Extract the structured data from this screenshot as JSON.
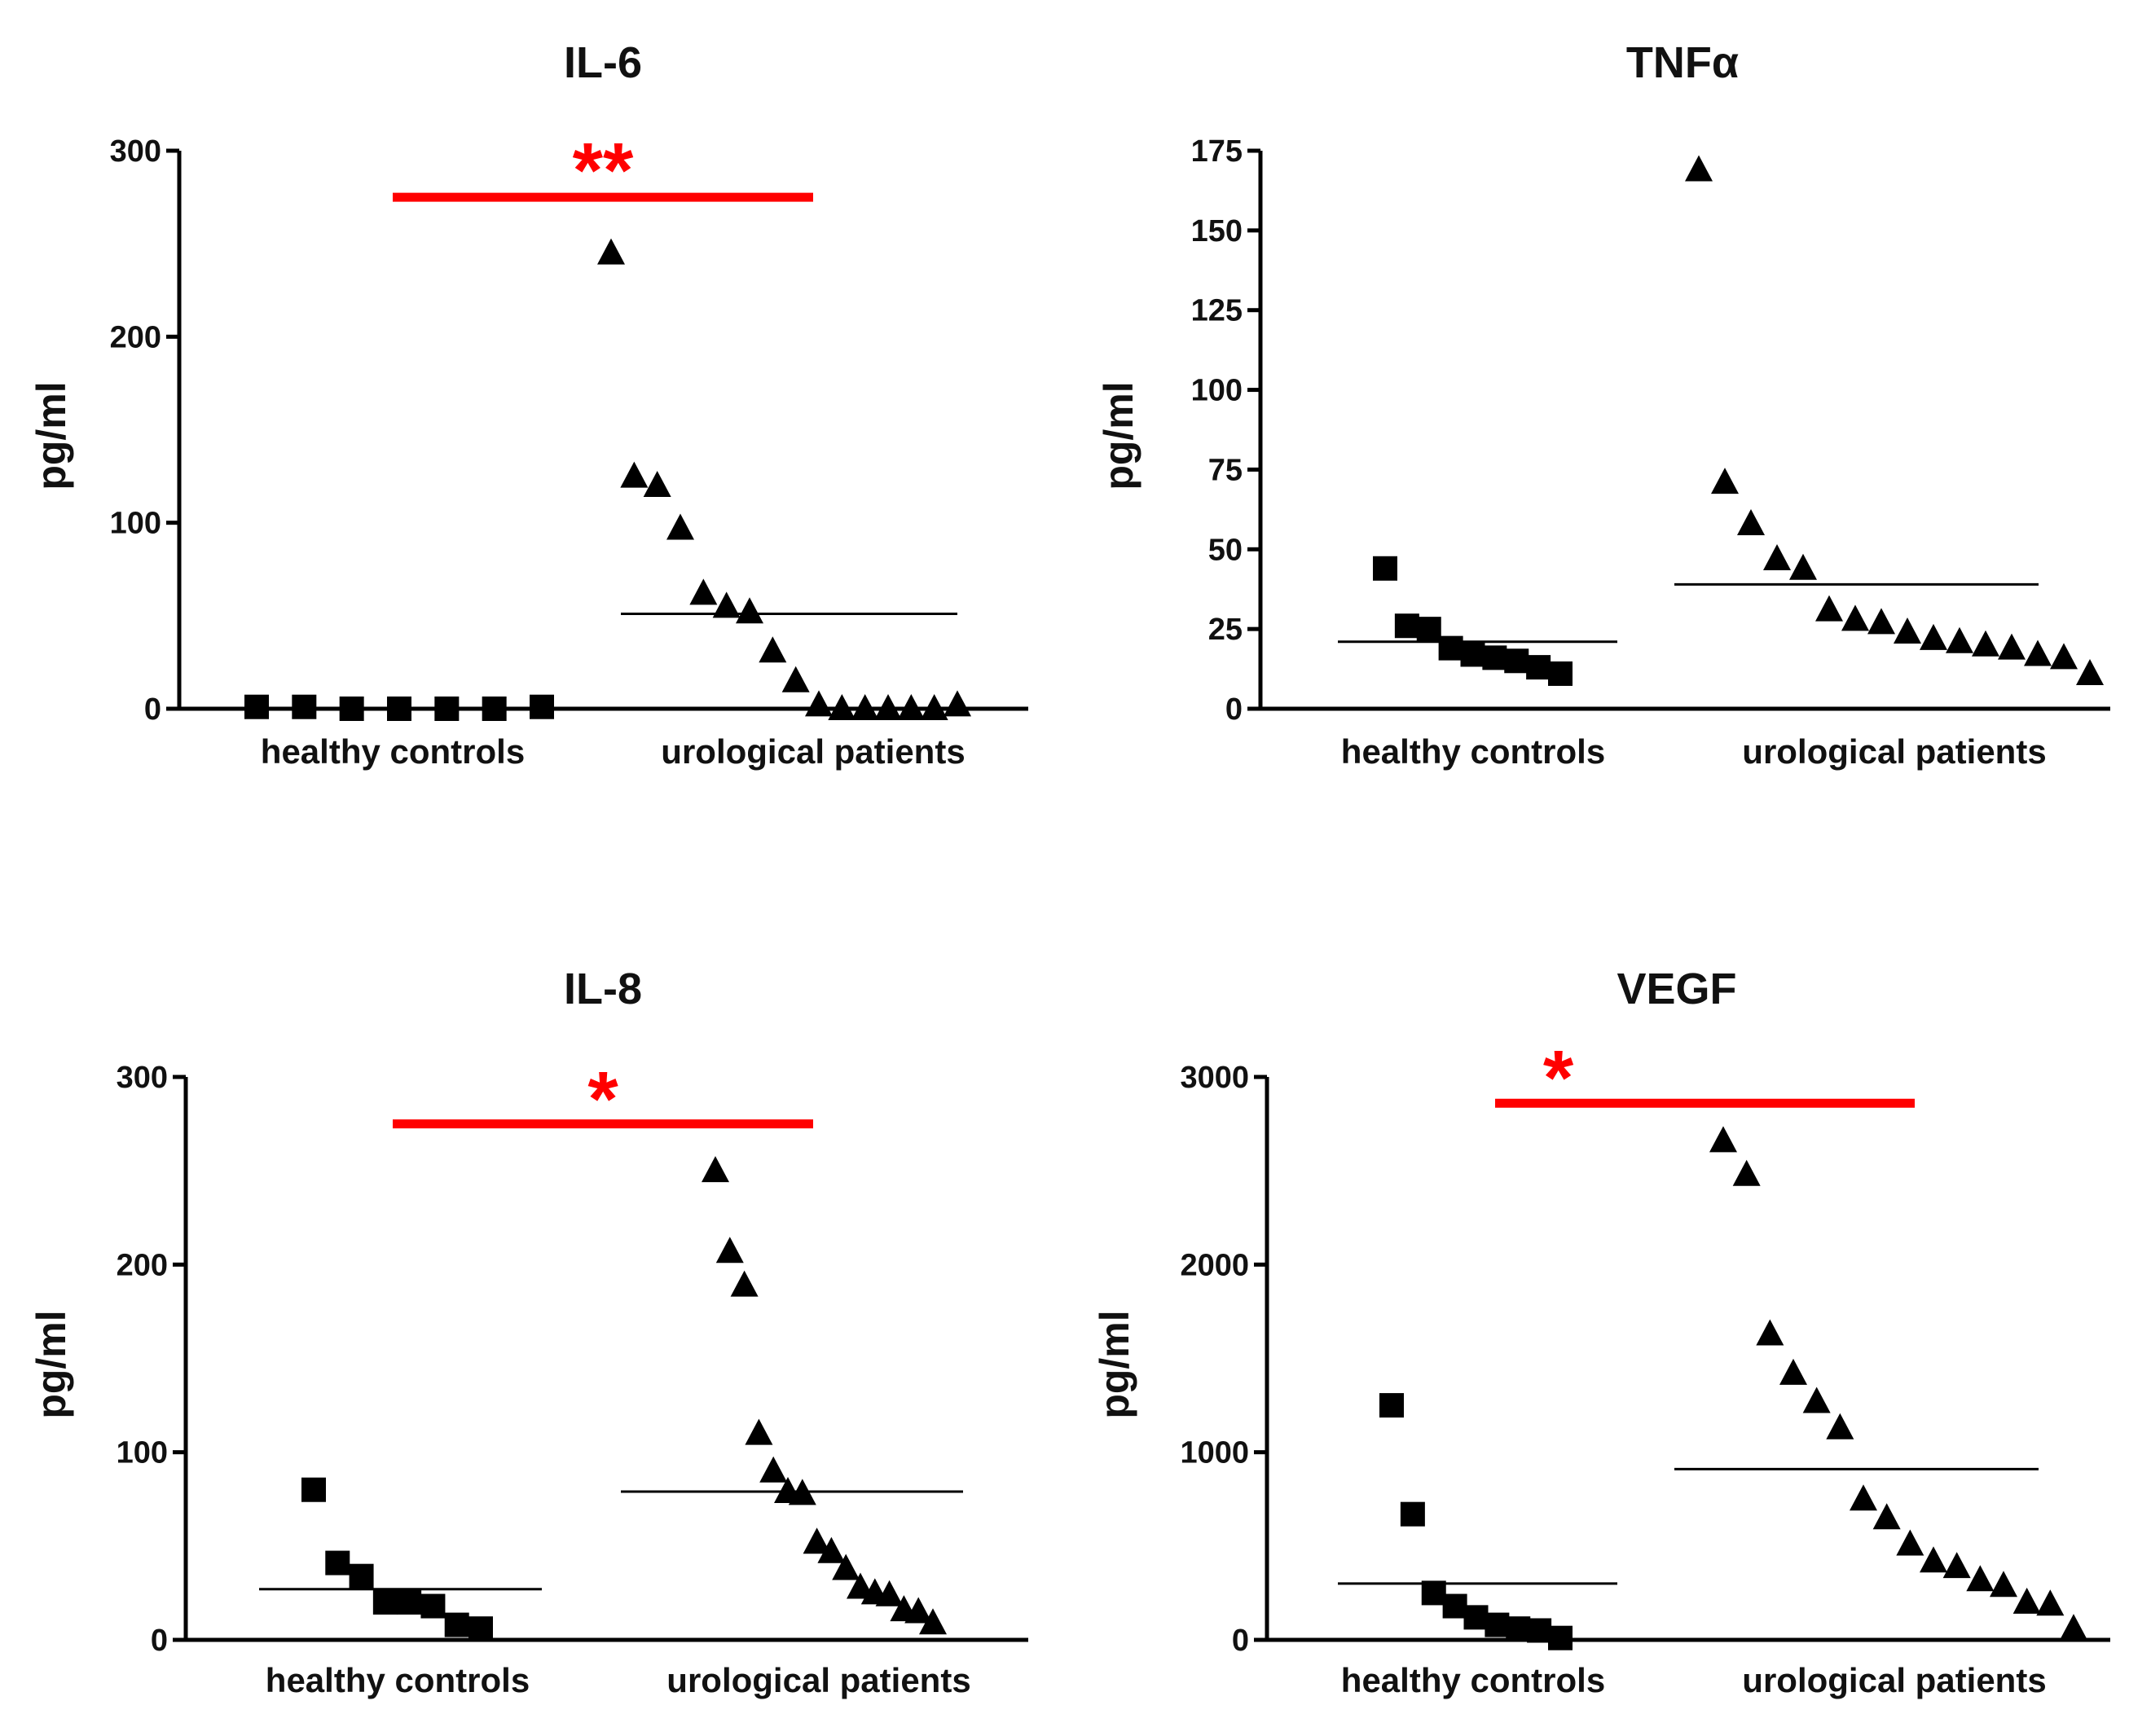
{
  "colors": {
    "ink": "#000000",
    "significance": "#ff0000"
  },
  "chart_data": [
    {
      "type": "scatter",
      "title": "IL-6",
      "ylabel": "pg/ml",
      "ylim": [
        0,
        300
      ],
      "yticks": [
        "0",
        "100",
        "200",
        "300"
      ],
      "categories": [
        "healthy controls",
        "urological patients"
      ],
      "series": [
        {
          "name": "healthy controls",
          "marker": "square",
          "values": [
            1,
            1,
            0,
            0,
            0,
            0,
            1
          ],
          "median": 0
        },
        {
          "name": "urological patients",
          "marker": "triangle",
          "values": [
            245,
            125,
            120,
            97,
            62,
            55,
            52,
            31,
            15,
            2,
            0,
            0,
            0,
            0,
            0,
            2
          ],
          "median": 51
        }
      ],
      "significance": {
        "label": "**",
        "y": 275
      }
    },
    {
      "type": "scatter",
      "title": "TNFα",
      "ylabel": "pg/ml",
      "ylim": [
        0,
        175
      ],
      "yticks": [
        "0",
        "25",
        "50",
        "75",
        "100",
        "125",
        "150",
        "175"
      ],
      "categories": [
        "healthy controls",
        "urological patients"
      ],
      "series": [
        {
          "name": "healthy controls",
          "marker": "square",
          "values": [
            44,
            26,
            25,
            19,
            17,
            16,
            15,
            13,
            11
          ],
          "median": 21
        },
        {
          "name": "urological patients",
          "marker": "triangle",
          "values": [
            169,
            71,
            58,
            47,
            44,
            31,
            28,
            27,
            24,
            22,
            21,
            20,
            19,
            17,
            16,
            11
          ],
          "median": 39
        }
      ],
      "significance": null
    },
    {
      "type": "scatter",
      "title": "IL-8",
      "ylabel": "pg/ml",
      "ylim": [
        0,
        300
      ],
      "yticks": [
        "0",
        "100",
        "200",
        "300"
      ],
      "categories": [
        "healthy controls",
        "urological patients"
      ],
      "series": [
        {
          "name": "healthy controls",
          "marker": "square",
          "values": [
            80,
            41,
            34,
            20,
            20,
            18,
            8,
            6
          ],
          "median": 27
        },
        {
          "name": "urological patients",
          "marker": "triangle",
          "values": [
            250,
            207,
            189,
            110,
            90,
            79,
            78,
            52,
            47,
            38,
            28,
            25,
            24,
            16,
            15,
            9
          ],
          "median": 79
        }
      ],
      "significance": {
        "label": "*",
        "y": 275
      }
    },
    {
      "type": "scatter",
      "title": "VEGF",
      "ylabel": "pg/ml",
      "ylim": [
        0,
        3000
      ],
      "yticks": [
        "0",
        "1000",
        "2000",
        "3000"
      ],
      "categories": [
        "healthy controls",
        "urological patients"
      ],
      "series": [
        {
          "name": "healthy controls",
          "marker": "square",
          "values": [
            1250,
            670,
            250,
            180,
            120,
            80,
            60,
            50,
            10
          ],
          "median": 300
        },
        {
          "name": "urological patients",
          "marker": "triangle",
          "values": [
            2660,
            2480,
            1630,
            1420,
            1270,
            1130,
            750,
            650,
            510,
            420,
            390,
            320,
            290,
            200,
            190,
            60
          ],
          "median": 910
        }
      ],
      "significance": {
        "label": "*",
        "y": 2860
      }
    }
  ]
}
